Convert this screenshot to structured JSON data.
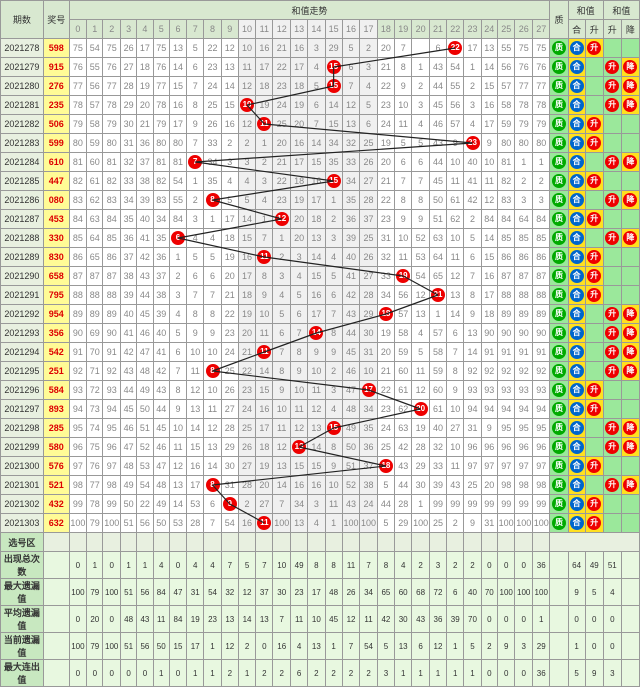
{
  "grid_bg": "#ffffff",
  "border_color": "#999999",
  "header_bg": "#d8e8d0",
  "period_bg": "#e8f0e0",
  "jiang_bg": "#fffb96",
  "jiang_fg": "#dd0000",
  "alt_bg": "#f0f0f0",
  "q_bg": "#9be89b",
  "yellow_bg": "#ffe020",
  "stat_hdr_bg": "#c8e8c0",
  "stat_bg": "#e8f8e0",
  "red": "#ee0000",
  "blue": "#0066cc",
  "green": "#00aa00",
  "line_color": "#222222",
  "hdr": {
    "period": "期数",
    "jiang": "奖号",
    "hezhi": "和值走势",
    "zhi": "质",
    "he": "合",
    "sheng": "升",
    "jiang2": "降",
    "hz1": "和值",
    "hz2": "和值"
  },
  "cols": [
    "0",
    "1",
    "2",
    "3",
    "4",
    "5",
    "6",
    "7",
    "8",
    "9",
    "10",
    "11",
    "12",
    "13",
    "14",
    "15",
    "16",
    "17",
    "18",
    "19",
    "20",
    "21",
    "22",
    "23",
    "24",
    "25",
    "26",
    "27"
  ],
  "rows": [
    {
      "p": "2021278",
      "j": "598",
      "red": 22,
      "q": "质",
      "h1": "合",
      "h2": "升",
      "nums": [
        "75",
        "54",
        "75",
        "26",
        "17",
        "75",
        "13",
        "5",
        "22",
        "12",
        "10",
        "16",
        "21",
        "16",
        "3",
        "29",
        "5",
        "2",
        "20",
        "7",
        "",
        "6",
        "",
        "17",
        "13",
        "55",
        "75",
        "75"
      ]
    },
    {
      "p": "2021279",
      "j": "915",
      "red": 15,
      "q": "质",
      "h1": "合",
      "h2": "降",
      "nums": [
        "76",
        "55",
        "76",
        "27",
        "18",
        "76",
        "14",
        "6",
        "23",
        "13",
        "11",
        "17",
        "22",
        "17",
        "4",
        "",
        "6",
        "3",
        "21",
        "8",
        "1",
        "43",
        "54",
        "1",
        "14",
        "56",
        "76",
        "76"
      ]
    },
    {
      "p": "2021280",
      "j": "276",
      "red": 15,
      "q": "质",
      "h1": "合",
      "h2": "降",
      "nums": [
        "77",
        "56",
        "77",
        "28",
        "19",
        "77",
        "15",
        "7",
        "24",
        "14",
        "12",
        "18",
        "23",
        "18",
        "5",
        "",
        "7",
        "4",
        "22",
        "9",
        "2",
        "44",
        "55",
        "2",
        "15",
        "57",
        "77",
        "77"
      ]
    },
    {
      "p": "2021281",
      "j": "235",
      "red": 10,
      "q": "质",
      "h1": "合",
      "h2": "降",
      "nums": [
        "78",
        "57",
        "78",
        "29",
        "20",
        "78",
        "16",
        "8",
        "25",
        "15",
        "",
        "19",
        "24",
        "19",
        "6",
        "14",
        "12",
        "5",
        "23",
        "10",
        "3",
        "45",
        "56",
        "3",
        "16",
        "58",
        "78",
        "78"
      ]
    },
    {
      "p": "2021282",
      "j": "506",
      "red": 11,
      "q": "质",
      "h1": "合",
      "h2": "升",
      "nums": [
        "79",
        "58",
        "79",
        "30",
        "21",
        "79",
        "17",
        "9",
        "26",
        "16",
        "12",
        "",
        "25",
        "20",
        "7",
        "15",
        "13",
        "6",
        "24",
        "11",
        "4",
        "46",
        "57",
        "4",
        "17",
        "59",
        "79",
        "79"
      ]
    },
    {
      "p": "2021283",
      "j": "599",
      "red": 23,
      "q": "质",
      "h1": "合",
      "h2": "升",
      "nums": [
        "80",
        "59",
        "80",
        "31",
        "36",
        "80",
        "80",
        "7",
        "33",
        "2",
        "2",
        "1",
        "20",
        "16",
        "14",
        "34",
        "32",
        "25",
        "19",
        "5",
        "5",
        "43",
        "9",
        "",
        "9",
        "80",
        "80",
        "80"
      ]
    },
    {
      "p": "2021284",
      "j": "610",
      "red": 7,
      "q": "质",
      "h1": "合",
      "h2": "降",
      "nums": [
        "81",
        "60",
        "81",
        "32",
        "37",
        "81",
        "81",
        "",
        "34",
        "3",
        "3",
        "2",
        "21",
        "17",
        "15",
        "35",
        "33",
        "26",
        "20",
        "6",
        "6",
        "44",
        "10",
        "40",
        "10",
        "81",
        "1",
        "1"
      ]
    },
    {
      "p": "2021285",
      "j": "447",
      "red": 15,
      "q": "质",
      "h1": "合",
      "h2": "升",
      "nums": [
        "82",
        "61",
        "82",
        "33",
        "38",
        "82",
        "54",
        "1",
        "35",
        "4",
        "4",
        "3",
        "22",
        "18",
        "16",
        "",
        "34",
        "27",
        "21",
        "7",
        "7",
        "45",
        "11",
        "41",
        "11",
        "82",
        "2",
        "2"
      ]
    },
    {
      "p": "2021286",
      "j": "080",
      "red": 8,
      "q": "质",
      "h1": "合",
      "h2": "降",
      "nums": [
        "83",
        "62",
        "83",
        "34",
        "39",
        "83",
        "55",
        "2",
        "",
        "5",
        "5",
        "4",
        "23",
        "19",
        "17",
        "1",
        "35",
        "28",
        "22",
        "8",
        "8",
        "50",
        "61",
        "42",
        "12",
        "83",
        "3",
        "3"
      ]
    },
    {
      "p": "2021287",
      "j": "453",
      "red": 12,
      "q": "质",
      "h1": "合",
      "h2": "升",
      "nums": [
        "84",
        "63",
        "84",
        "35",
        "40",
        "34",
        "84",
        "3",
        "1",
        "17",
        "14",
        "1",
        "",
        "20",
        "18",
        "2",
        "36",
        "37",
        "23",
        "9",
        "9",
        "51",
        "62",
        "2",
        "84",
        "84",
        "64",
        "84"
      ]
    },
    {
      "p": "2021288",
      "j": "330",
      "red": 6,
      "q": "质",
      "h1": "合",
      "h2": "降",
      "nums": [
        "85",
        "64",
        "85",
        "36",
        "41",
        "35",
        "",
        "4",
        "4",
        "18",
        "15",
        "7",
        "1",
        "20",
        "13",
        "3",
        "39",
        "25",
        "31",
        "10",
        "52",
        "63",
        "10",
        "5",
        "14",
        "85",
        "85",
        "85"
      ]
    },
    {
      "p": "2021289",
      "j": "830",
      "red": 11,
      "q": "质",
      "h1": "合",
      "h2": "升",
      "nums": [
        "86",
        "65",
        "86",
        "37",
        "42",
        "36",
        "1",
        "5",
        "5",
        "19",
        "16",
        "",
        "2",
        "3",
        "14",
        "4",
        "40",
        "26",
        "32",
        "11",
        "53",
        "64",
        "11",
        "6",
        "15",
        "86",
        "86",
        "86"
      ]
    },
    {
      "p": "2021290",
      "j": "658",
      "red": 19,
      "q": "质",
      "h1": "合",
      "h2": "升",
      "nums": [
        "87",
        "87",
        "87",
        "38",
        "43",
        "37",
        "2",
        "6",
        "6",
        "20",
        "17",
        "8",
        "3",
        "4",
        "15",
        "5",
        "41",
        "27",
        "33",
        "",
        "54",
        "65",
        "12",
        "7",
        "16",
        "87",
        "87",
        "87"
      ]
    },
    {
      "p": "2021291",
      "j": "795",
      "red": 21,
      "q": "质",
      "h1": "合",
      "h2": "升",
      "nums": [
        "88",
        "88",
        "88",
        "39",
        "44",
        "38",
        "3",
        "7",
        "7",
        "21",
        "18",
        "9",
        "4",
        "5",
        "16",
        "6",
        "42",
        "28",
        "34",
        "56",
        "12",
        "",
        "13",
        "8",
        "17",
        "88",
        "88",
        "88"
      ]
    },
    {
      "p": "2021292",
      "j": "954",
      "red": 18,
      "q": "质",
      "h1": "合",
      "h2": "降",
      "nums": [
        "89",
        "89",
        "89",
        "40",
        "45",
        "39",
        "4",
        "8",
        "8",
        "22",
        "19",
        "10",
        "5",
        "6",
        "17",
        "7",
        "43",
        "29",
        "",
        "57",
        "13",
        "1",
        "14",
        "9",
        "18",
        "89",
        "89",
        "89"
      ]
    },
    {
      "p": "2021293",
      "j": "356",
      "red": 14,
      "q": "质",
      "h1": "合",
      "h2": "降",
      "nums": [
        "90",
        "69",
        "90",
        "41",
        "46",
        "40",
        "5",
        "9",
        "9",
        "23",
        "20",
        "11",
        "6",
        "7",
        "",
        "8",
        "44",
        "30",
        "19",
        "58",
        "4",
        "57",
        "6",
        "13",
        "90",
        "90",
        "90",
        "90"
      ]
    },
    {
      "p": "2021294",
      "j": "542",
      "red": 11,
      "q": "质",
      "h1": "合",
      "h2": "降",
      "nums": [
        "91",
        "70",
        "91",
        "42",
        "47",
        "41",
        "6",
        "10",
        "10",
        "24",
        "21",
        "",
        "7",
        "8",
        "9",
        "9",
        "45",
        "31",
        "20",
        "59",
        "5",
        "58",
        "7",
        "14",
        "91",
        "91",
        "91",
        "91"
      ]
    },
    {
      "p": "2021295",
      "j": "251",
      "red": 8,
      "q": "质",
      "h1": "合",
      "h2": "降",
      "nums": [
        "92",
        "71",
        "92",
        "43",
        "48",
        "42",
        "7",
        "11",
        "",
        "25",
        "22",
        "14",
        "8",
        "9",
        "10",
        "2",
        "46",
        "10",
        "21",
        "60",
        "11",
        "59",
        "8",
        "92",
        "92",
        "92",
        "92",
        "92"
      ]
    },
    {
      "p": "2021296",
      "j": "584",
      "red": 17,
      "q": "质",
      "h1": "合",
      "h2": "升",
      "nums": [
        "93",
        "72",
        "93",
        "44",
        "49",
        "43",
        "8",
        "12",
        "10",
        "26",
        "23",
        "15",
        "9",
        "10",
        "11",
        "3",
        "47",
        "",
        "22",
        "61",
        "12",
        "60",
        "9",
        "93",
        "93",
        "93",
        "93",
        "93"
      ]
    },
    {
      "p": "2021297",
      "j": "893",
      "red": 20,
      "q": "质",
      "h1": "合",
      "h2": "升",
      "nums": [
        "94",
        "73",
        "94",
        "45",
        "50",
        "44",
        "9",
        "13",
        "11",
        "27",
        "24",
        "16",
        "10",
        "11",
        "12",
        "4",
        "48",
        "34",
        "23",
        "62",
        "",
        "61",
        "10",
        "94",
        "94",
        "94",
        "94",
        "94"
      ]
    },
    {
      "p": "2021298",
      "j": "285",
      "red": 15,
      "q": "质",
      "h1": "合",
      "h2": "降",
      "nums": [
        "95",
        "74",
        "95",
        "46",
        "51",
        "45",
        "10",
        "14",
        "12",
        "28",
        "25",
        "17",
        "11",
        "12",
        "13",
        "",
        "49",
        "35",
        "24",
        "63",
        "19",
        "40",
        "27",
        "31",
        "9",
        "95",
        "95",
        "95"
      ]
    },
    {
      "p": "2021299",
      "j": "580",
      "red": 13,
      "q": "质",
      "h1": "合",
      "h2": "降",
      "nums": [
        "96",
        "75",
        "96",
        "47",
        "52",
        "46",
        "11",
        "15",
        "13",
        "29",
        "26",
        "18",
        "12",
        "",
        "14",
        "8",
        "50",
        "36",
        "25",
        "42",
        "28",
        "32",
        "10",
        "96",
        "96",
        "96",
        "96",
        "96"
      ]
    },
    {
      "p": "2021300",
      "j": "576",
      "red": 18,
      "q": "质",
      "h1": "合",
      "h2": "升",
      "nums": [
        "97",
        "76",
        "97",
        "48",
        "53",
        "47",
        "12",
        "16",
        "14",
        "30",
        "27",
        "19",
        "13",
        "15",
        "15",
        "9",
        "51",
        "37",
        "",
        "43",
        "29",
        "33",
        "11",
        "97",
        "97",
        "97",
        "97",
        "97"
      ]
    },
    {
      "p": "2021301",
      "j": "521",
      "red": 8,
      "q": "质",
      "h1": "合",
      "h2": "降",
      "nums": [
        "98",
        "77",
        "98",
        "49",
        "54",
        "48",
        "13",
        "17",
        "",
        "31",
        "28",
        "20",
        "14",
        "16",
        "16",
        "10",
        "52",
        "38",
        "5",
        "44",
        "30",
        "39",
        "43",
        "25",
        "20",
        "98",
        "98",
        "98"
      ]
    },
    {
      "p": "2021302",
      "j": "432",
      "red": 9,
      "q": "质",
      "h1": "合",
      "h2": "升",
      "nums": [
        "99",
        "78",
        "99",
        "50",
        "22",
        "49",
        "14",
        "53",
        "6",
        "",
        "2",
        "27",
        "7",
        "34",
        "3",
        "11",
        "43",
        "24",
        "44",
        "28",
        "1",
        "99",
        "99",
        "99",
        "99",
        "99",
        "99",
        "99"
      ]
    },
    {
      "p": "2021303",
      "j": "632",
      "red": 11,
      "q": "质",
      "h1": "合",
      "h2": "升",
      "nums": [
        "100",
        "79",
        "100",
        "51",
        "56",
        "50",
        "53",
        "28",
        "7",
        "54",
        "16",
        "",
        "100",
        "13",
        "4",
        "1",
        "100",
        "100",
        "5",
        "29",
        "100",
        "25",
        "2",
        "9",
        "31",
        "100",
        "100",
        "100"
      ]
    }
  ],
  "xuanhao": "选号区",
  "stats": [
    {
      "l": "出现总次数",
      "v": [
        "0",
        "1",
        "0",
        "1",
        "1",
        "4",
        "0",
        "4",
        "4",
        "7",
        "5",
        "7",
        "10",
        "49",
        "8",
        "8",
        "11",
        "7",
        "8",
        "4",
        "2",
        "3",
        "2",
        "2",
        "0",
        "0",
        "0",
        "36"
      ],
      "t": [
        "64",
        "49",
        "51"
      ]
    },
    {
      "l": "最大遗漏值",
      "v": [
        "100",
        "79",
        "100",
        "51",
        "56",
        "84",
        "47",
        "31",
        "54",
        "32",
        "12",
        "37",
        "30",
        "23",
        "17",
        "48",
        "26",
        "34",
        "65",
        "60",
        "68",
        "72",
        "6",
        "40",
        "70",
        "100",
        "100",
        "100"
      ],
      "t": [
        "9",
        "5",
        "4"
      ]
    },
    {
      "l": "平均遗漏值",
      "v": [
        "0",
        "20",
        "0",
        "48",
        "43",
        "11",
        "84",
        "19",
        "23",
        "13",
        "14",
        "13",
        "7",
        "11",
        "10",
        "45",
        "12",
        "11",
        "42",
        "30",
        "43",
        "36",
        "39",
        "70",
        "0",
        "0",
        "0",
        "1"
      ],
      "t": [
        "0",
        "0",
        "0"
      ]
    },
    {
      "l": "当前遗漏值",
      "v": [
        "100",
        "79",
        "100",
        "51",
        "56",
        "50",
        "15",
        "17",
        "1",
        "12",
        "2",
        "0",
        "16",
        "4",
        "13",
        "1",
        "7",
        "54",
        "5",
        "13",
        "6",
        "12",
        "1",
        "5",
        "2",
        "9",
        "3",
        "29"
      ],
      "t": [
        "1",
        "0",
        "0"
      ]
    },
    {
      "l": "最大连出值",
      "v": [
        "0",
        "0",
        "0",
        "0",
        "0",
        "1",
        "0",
        "1",
        "1",
        "2",
        "1",
        "2",
        "2",
        "6",
        "2",
        "2",
        "2",
        "2",
        "3",
        "1",
        "1",
        "1",
        "1",
        "1",
        "0",
        "0",
        "0",
        "36"
      ],
      "t": [
        "5",
        "9",
        "3"
      ]
    }
  ]
}
